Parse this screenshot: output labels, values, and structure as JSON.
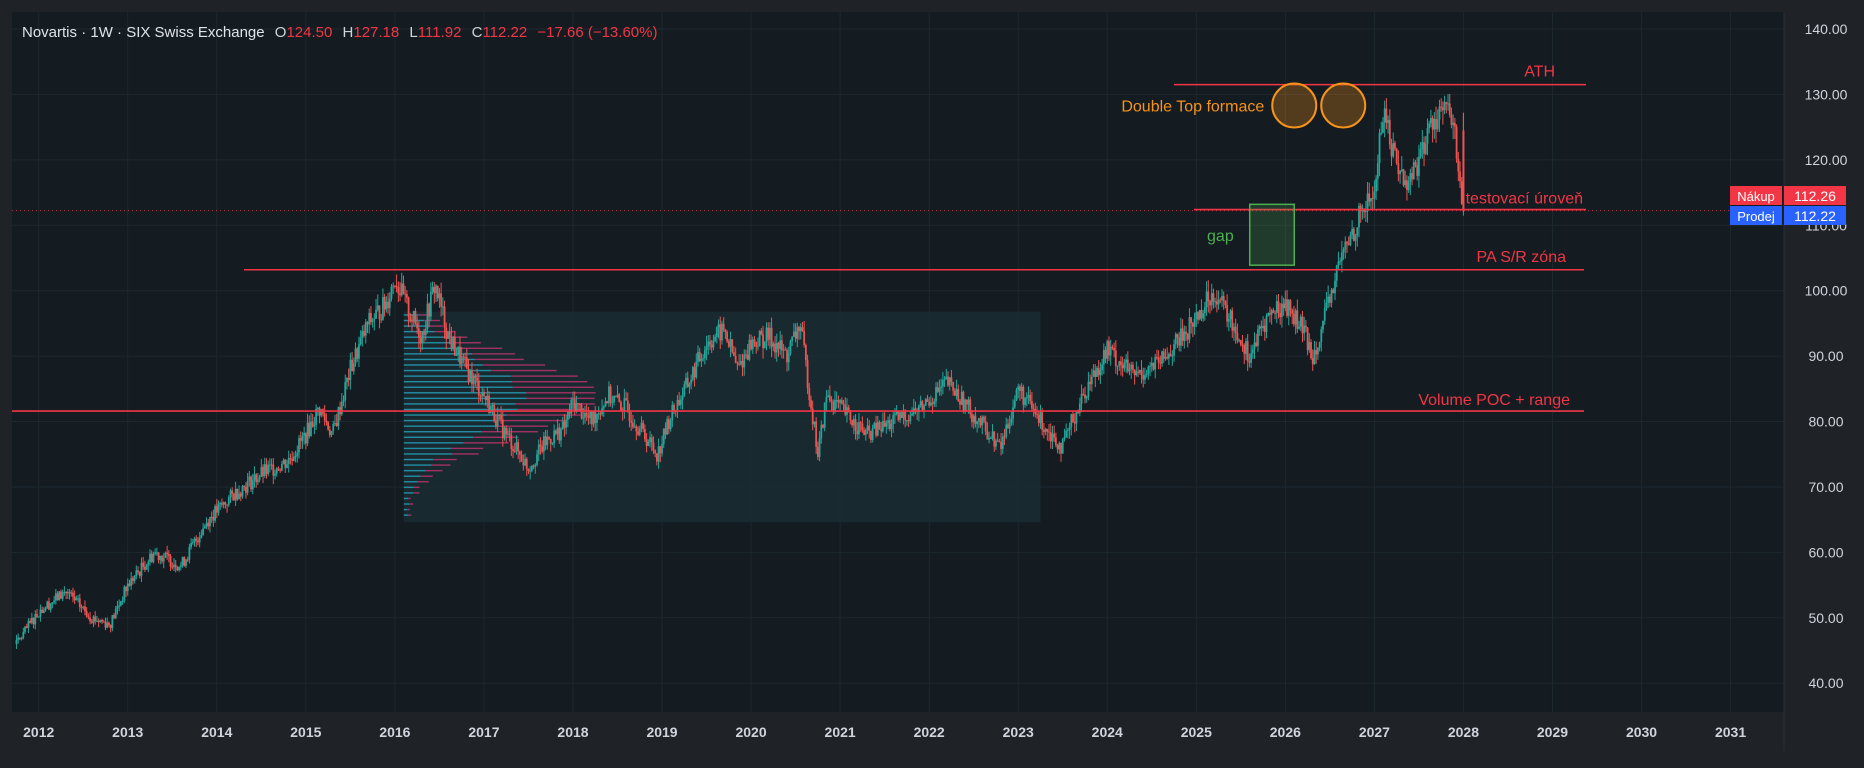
{
  "header": {
    "symbol": "Novartis",
    "interval": "1W",
    "exchange": "SIX Swiss Exchange",
    "sep": "·",
    "ohlc": {
      "o_label": "O",
      "o": "124.50",
      "h_label": "H",
      "h": "127.18",
      "l_label": "L",
      "l": "111.92",
      "c_label": "C",
      "c": "112.22",
      "change": "−17.66 (−13.60%)"
    }
  },
  "colors": {
    "background": "#141b21",
    "frame": "#1f2227",
    "grid": "#1e282f",
    "up": "#26a69a",
    "down": "#ef5350",
    "level_line": "#f23645",
    "annotation_orange": "#f7931a",
    "gap_green": "#4caf50",
    "volume_up": "#26a6c0",
    "volume_down": "#c2336f",
    "range_box": "#1a2c33",
    "bid": "#f23645",
    "ask": "#2962ff"
  },
  "price_tags": {
    "bid_label": "Nákup",
    "bid_value": "112.26",
    "ask_label": "Prodej",
    "ask_value": "112.22"
  },
  "chart_data": {
    "type": "candlestick",
    "title": "Novartis · 1W · SIX Swiss Exchange",
    "y_ticks": [
      "140.00",
      "130.00",
      "120.00",
      "110.00",
      "100.00",
      "90.00",
      "80.00",
      "70.00",
      "60.00",
      "50.00",
      "40.00"
    ],
    "ylim": [
      35.6,
      142.6
    ],
    "x_ticks": [
      "2012",
      "2013",
      "2014",
      "2015",
      "2016",
      "2017",
      "2018",
      "2019",
      "2020",
      "2021",
      "2022",
      "2023",
      "2024",
      "2025",
      "2026",
      "2027",
      "2028",
      "2029",
      "2030",
      "2031"
    ],
    "xlim": [
      2011.7,
      2031.6
    ],
    "grid": true,
    "price_path": [
      [
        2011.75,
        46
      ],
      [
        2012.0,
        51
      ],
      [
        2012.3,
        54
      ],
      [
        2012.6,
        50
      ],
      [
        2012.8,
        49
      ],
      [
        2013.0,
        55
      ],
      [
        2013.3,
        60
      ],
      [
        2013.6,
        58
      ],
      [
        2013.9,
        65
      ],
      [
        2014.2,
        69
      ],
      [
        2014.5,
        72
      ],
      [
        2014.8,
        74
      ],
      [
        2015.0,
        78
      ],
      [
        2015.15,
        82
      ],
      [
        2015.3,
        78
      ],
      [
        2015.5,
        88
      ],
      [
        2015.7,
        95
      ],
      [
        2015.9,
        98
      ],
      [
        2016.0,
        102
      ],
      [
        2016.15,
        97
      ],
      [
        2016.3,
        93
      ],
      [
        2016.45,
        101
      ],
      [
        2016.6,
        93
      ],
      [
        2016.8,
        88
      ],
      [
        2017.0,
        84
      ],
      [
        2017.2,
        79
      ],
      [
        2017.35,
        76
      ],
      [
        2017.5,
        73
      ],
      [
        2017.7,
        77
      ],
      [
        2017.9,
        79
      ],
      [
        2018.0,
        83
      ],
      [
        2018.2,
        80
      ],
      [
        2018.4,
        84
      ],
      [
        2018.6,
        82
      ],
      [
        2018.8,
        78
      ],
      [
        2018.95,
        75
      ],
      [
        2019.1,
        81
      ],
      [
        2019.3,
        86
      ],
      [
        2019.5,
        92
      ],
      [
        2019.7,
        94
      ],
      [
        2019.85,
        88
      ],
      [
        2020.0,
        92
      ],
      [
        2020.2,
        93
      ],
      [
        2020.4,
        90
      ],
      [
        2020.55,
        95
      ],
      [
        2020.65,
        85
      ],
      [
        2020.75,
        75
      ],
      [
        2020.85,
        84
      ],
      [
        2021.0,
        82
      ],
      [
        2021.3,
        78
      ],
      [
        2021.6,
        80
      ],
      [
        2021.9,
        82
      ],
      [
        2022.2,
        86
      ],
      [
        2022.5,
        81
      ],
      [
        2022.8,
        76
      ],
      [
        2023.0,
        85
      ],
      [
        2023.2,
        81
      ],
      [
        2023.5,
        76
      ],
      [
        2023.6,
        80
      ],
      [
        2023.8,
        86
      ],
      [
        2024.0,
        91
      ],
      [
        2024.3,
        87
      ],
      [
        2024.6,
        89
      ],
      [
        2024.9,
        94
      ],
      [
        2025.2,
        100
      ],
      [
        2025.4,
        95
      ],
      [
        2025.6,
        90
      ],
      [
        2025.8,
        96
      ],
      [
        2026.0,
        98
      ],
      [
        2026.2,
        94
      ],
      [
        2026.3,
        90
      ],
      [
        2026.45,
        96
      ],
      [
        2026.6,
        104
      ],
      [
        2026.85,
        112
      ],
      [
        2027.0,
        115
      ],
      [
        2027.1,
        128
      ],
      [
        2027.2,
        122
      ],
      [
        2027.35,
        116
      ],
      [
        2027.5,
        120
      ],
      [
        2027.65,
        126
      ],
      [
        2027.8,
        128
      ],
      [
        2027.9,
        124
      ],
      [
        2028.0,
        112
      ]
    ]
  },
  "annotations": {
    "ath": {
      "label": "ATH",
      "price": 131.5
    },
    "test_level": {
      "label": "testovací úroveň",
      "price": 112.4
    },
    "pa_zone": {
      "label": "PA S/R zóna",
      "price": 103.2
    },
    "volume_poc": {
      "label": "Volume POC + range",
      "price": 81.6
    },
    "double_top": {
      "label": "Double Top formace"
    },
    "gap": {
      "label": "gap",
      "top": 113.2,
      "bottom": 103.9
    }
  }
}
